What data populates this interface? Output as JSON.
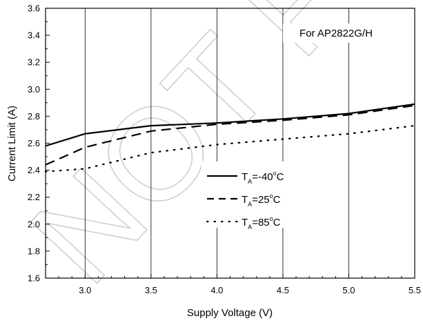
{
  "chart_data": {
    "type": "line",
    "xlabel": "Supply Voltage (V)",
    "ylabel": "Current Limit (A)",
    "xlim": [
      2.7,
      5.5
    ],
    "ylim": [
      1.6,
      3.6
    ],
    "xticks": [
      "3.0",
      "3.5",
      "4.0",
      "4.5",
      "5.0",
      "5.5"
    ],
    "yticks": [
      "1.6",
      "1.8",
      "2.0",
      "2.2",
      "2.4",
      "2.6",
      "2.8",
      "3.0",
      "3.2",
      "3.4",
      "3.6"
    ],
    "grid": "vertical",
    "annotation": "For AP2822G/H",
    "watermark": "NOT FOR",
    "legend_position": "center",
    "series": [
      {
        "name": "TA=-40°C",
        "legend": {
          "base": "T",
          "sub": "A",
          "rest_pre": "=-40",
          "sup": "o",
          "rest_post": "C"
        },
        "style": "solid",
        "x": [
          2.7,
          3.0,
          3.5,
          4.0,
          4.5,
          5.0,
          5.5
        ],
        "y": [
          2.58,
          2.67,
          2.73,
          2.75,
          2.78,
          2.82,
          2.89
        ]
      },
      {
        "name": "TA=25°C",
        "legend": {
          "base": "T",
          "sub": "A",
          "rest_pre": "=25",
          "sup": "o",
          "rest_post": "C"
        },
        "style": "dashed",
        "x": [
          2.7,
          3.0,
          3.5,
          4.0,
          4.5,
          5.0,
          5.5
        ],
        "y": [
          2.44,
          2.57,
          2.69,
          2.74,
          2.77,
          2.81,
          2.88
        ]
      },
      {
        "name": "TA=85°C",
        "legend": {
          "base": "T",
          "sub": "A",
          "rest_pre": "=85",
          "sup": "o",
          "rest_post": "C"
        },
        "style": "dotted",
        "x": [
          2.7,
          3.0,
          3.5,
          4.0,
          4.5,
          5.0,
          5.5
        ],
        "y": [
          2.39,
          2.41,
          2.53,
          2.59,
          2.63,
          2.67,
          2.73
        ]
      }
    ]
  }
}
